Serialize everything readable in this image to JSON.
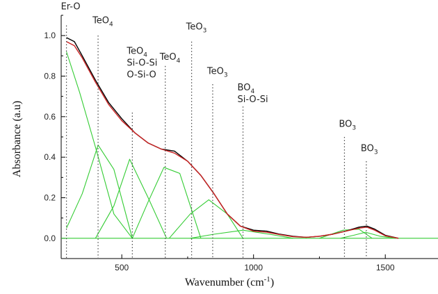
{
  "chart_data": {
    "type": "line",
    "xlabel": "Wavenumber (cm",
    "xlabel_sup": "-1",
    "xlabel_close": ")",
    "ylabel": "Absorbance (a.u)",
    "xlim": [
      270,
      1700
    ],
    "ylim": [
      -0.1,
      1.1
    ],
    "xticks": [
      500,
      1000,
      1500
    ],
    "yticks": [
      0.0,
      0.2,
      0.4,
      0.6,
      0.8,
      1.0
    ],
    "ytick_labels": [
      "0.0",
      "0.2",
      "0.4",
      "0.6",
      "0.8",
      "1.0"
    ],
    "colors": {
      "measured": "#000000",
      "fit": "#cc2222",
      "components": "#33cc33"
    },
    "series": [
      {
        "role": "measured",
        "x": [
          290,
          320,
          350,
          400,
          450,
          500,
          550,
          600,
          650,
          700,
          750,
          800,
          850,
          900,
          950,
          1000,
          1050,
          1100,
          1150,
          1200,
          1250,
          1300,
          1350,
          1400,
          1430,
          1460,
          1500,
          1550
        ],
        "values": [
          0.99,
          0.97,
          0.9,
          0.78,
          0.67,
          0.59,
          0.52,
          0.47,
          0.44,
          0.43,
          0.38,
          0.31,
          0.22,
          0.12,
          0.06,
          0.04,
          0.035,
          0.02,
          0.01,
          0.005,
          0.01,
          0.02,
          0.035,
          0.055,
          0.06,
          0.045,
          0.015,
          0.0
        ]
      },
      {
        "role": "fit",
        "x": [
          290,
          320,
          350,
          400,
          450,
          500,
          550,
          600,
          650,
          700,
          750,
          800,
          850,
          900,
          950,
          1000,
          1050,
          1100,
          1150,
          1200,
          1250,
          1300,
          1350,
          1400,
          1430,
          1460,
          1500,
          1550
        ],
        "values": [
          0.97,
          0.95,
          0.89,
          0.77,
          0.66,
          0.58,
          0.52,
          0.47,
          0.44,
          0.42,
          0.38,
          0.31,
          0.22,
          0.12,
          0.06,
          0.035,
          0.03,
          0.018,
          0.008,
          0.005,
          0.01,
          0.02,
          0.035,
          0.05,
          0.055,
          0.04,
          0.012,
          0.0
        ]
      },
      {
        "role": "component",
        "x": [
          290,
          340,
          400,
          470,
          540
        ],
        "values": [
          0.92,
          0.72,
          0.45,
          0.12,
          0.0
        ]
      },
      {
        "role": "component",
        "x": [
          290,
          350,
          410,
          470,
          540
        ],
        "values": [
          0.05,
          0.22,
          0.46,
          0.34,
          0.0
        ]
      },
      {
        "role": "component",
        "x": [
          400,
          470,
          530,
          600,
          670
        ],
        "values": [
          0.0,
          0.16,
          0.39,
          0.2,
          0.0
        ]
      },
      {
        "role": "component",
        "x": [
          540,
          600,
          660,
          720,
          800
        ],
        "values": [
          0.0,
          0.18,
          0.35,
          0.32,
          0.0
        ]
      },
      {
        "role": "component",
        "x": [
          680,
          760,
          830,
          900,
          960
        ],
        "values": [
          0.0,
          0.12,
          0.19,
          0.12,
          0.0
        ]
      },
      {
        "role": "component",
        "x": [
          760,
          850,
          960,
          1060,
          1150
        ],
        "values": [
          0.0,
          0.02,
          0.04,
          0.02,
          0.0
        ]
      },
      {
        "role": "component",
        "x": [
          1250,
          1340,
          1400,
          1450
        ],
        "values": [
          0.0,
          0.04,
          0.045,
          0.0
        ]
      },
      {
        "role": "component",
        "x": [
          1330,
          1380,
          1425,
          1480,
          1540
        ],
        "values": [
          0.0,
          0.015,
          0.03,
          0.01,
          0.0
        ]
      },
      {
        "role": "component",
        "x": [
          270,
          1700
        ],
        "values": [
          0.0,
          0.0
        ]
      }
    ],
    "annotations": [
      {
        "lines": [
          {
            "main": "Er-O"
          }
        ],
        "x": 290,
        "y_top": 1.05,
        "y_label": 1.13
      },
      {
        "lines": [
          {
            "main": "TeO",
            "sub": "4"
          }
        ],
        "x": 410,
        "y_top": 1.0,
        "y_label": 1.06
      },
      {
        "lines": [
          {
            "main": "TeO",
            "sub": "4"
          },
          {
            "main": "Si-O-Si"
          },
          {
            "main": "O-Si-O"
          }
        ],
        "x": 540,
        "y_top": 0.62,
        "y_label": 0.91
      },
      {
        "lines": [
          {
            "main": "TeO",
            "sub": "4"
          }
        ],
        "x": 665,
        "y_top": 0.85,
        "y_label": 0.88
      },
      {
        "lines": [
          {
            "main": "TeO",
            "sub": "3"
          }
        ],
        "x": 765,
        "y_top": 0.97,
        "y_label": 1.03
      },
      {
        "lines": [
          {
            "main": "TeO",
            "sub": "3"
          }
        ],
        "x": 845,
        "y_top": 0.76,
        "y_label": 0.81
      },
      {
        "lines": [
          {
            "main": "BO",
            "sub": "4"
          },
          {
            "main": "Si-O-Si"
          }
        ],
        "x": 960,
        "y_top": 0.65,
        "y_label": 0.73
      },
      {
        "lines": [
          {
            "main": "BO",
            "sub": "3"
          }
        ],
        "x": 1345,
        "y_top": 0.5,
        "y_label": 0.55
      },
      {
        "lines": [
          {
            "main": "BO",
            "sub": "3"
          }
        ],
        "x": 1428,
        "y_top": 0.38,
        "y_label": 0.43
      }
    ]
  }
}
